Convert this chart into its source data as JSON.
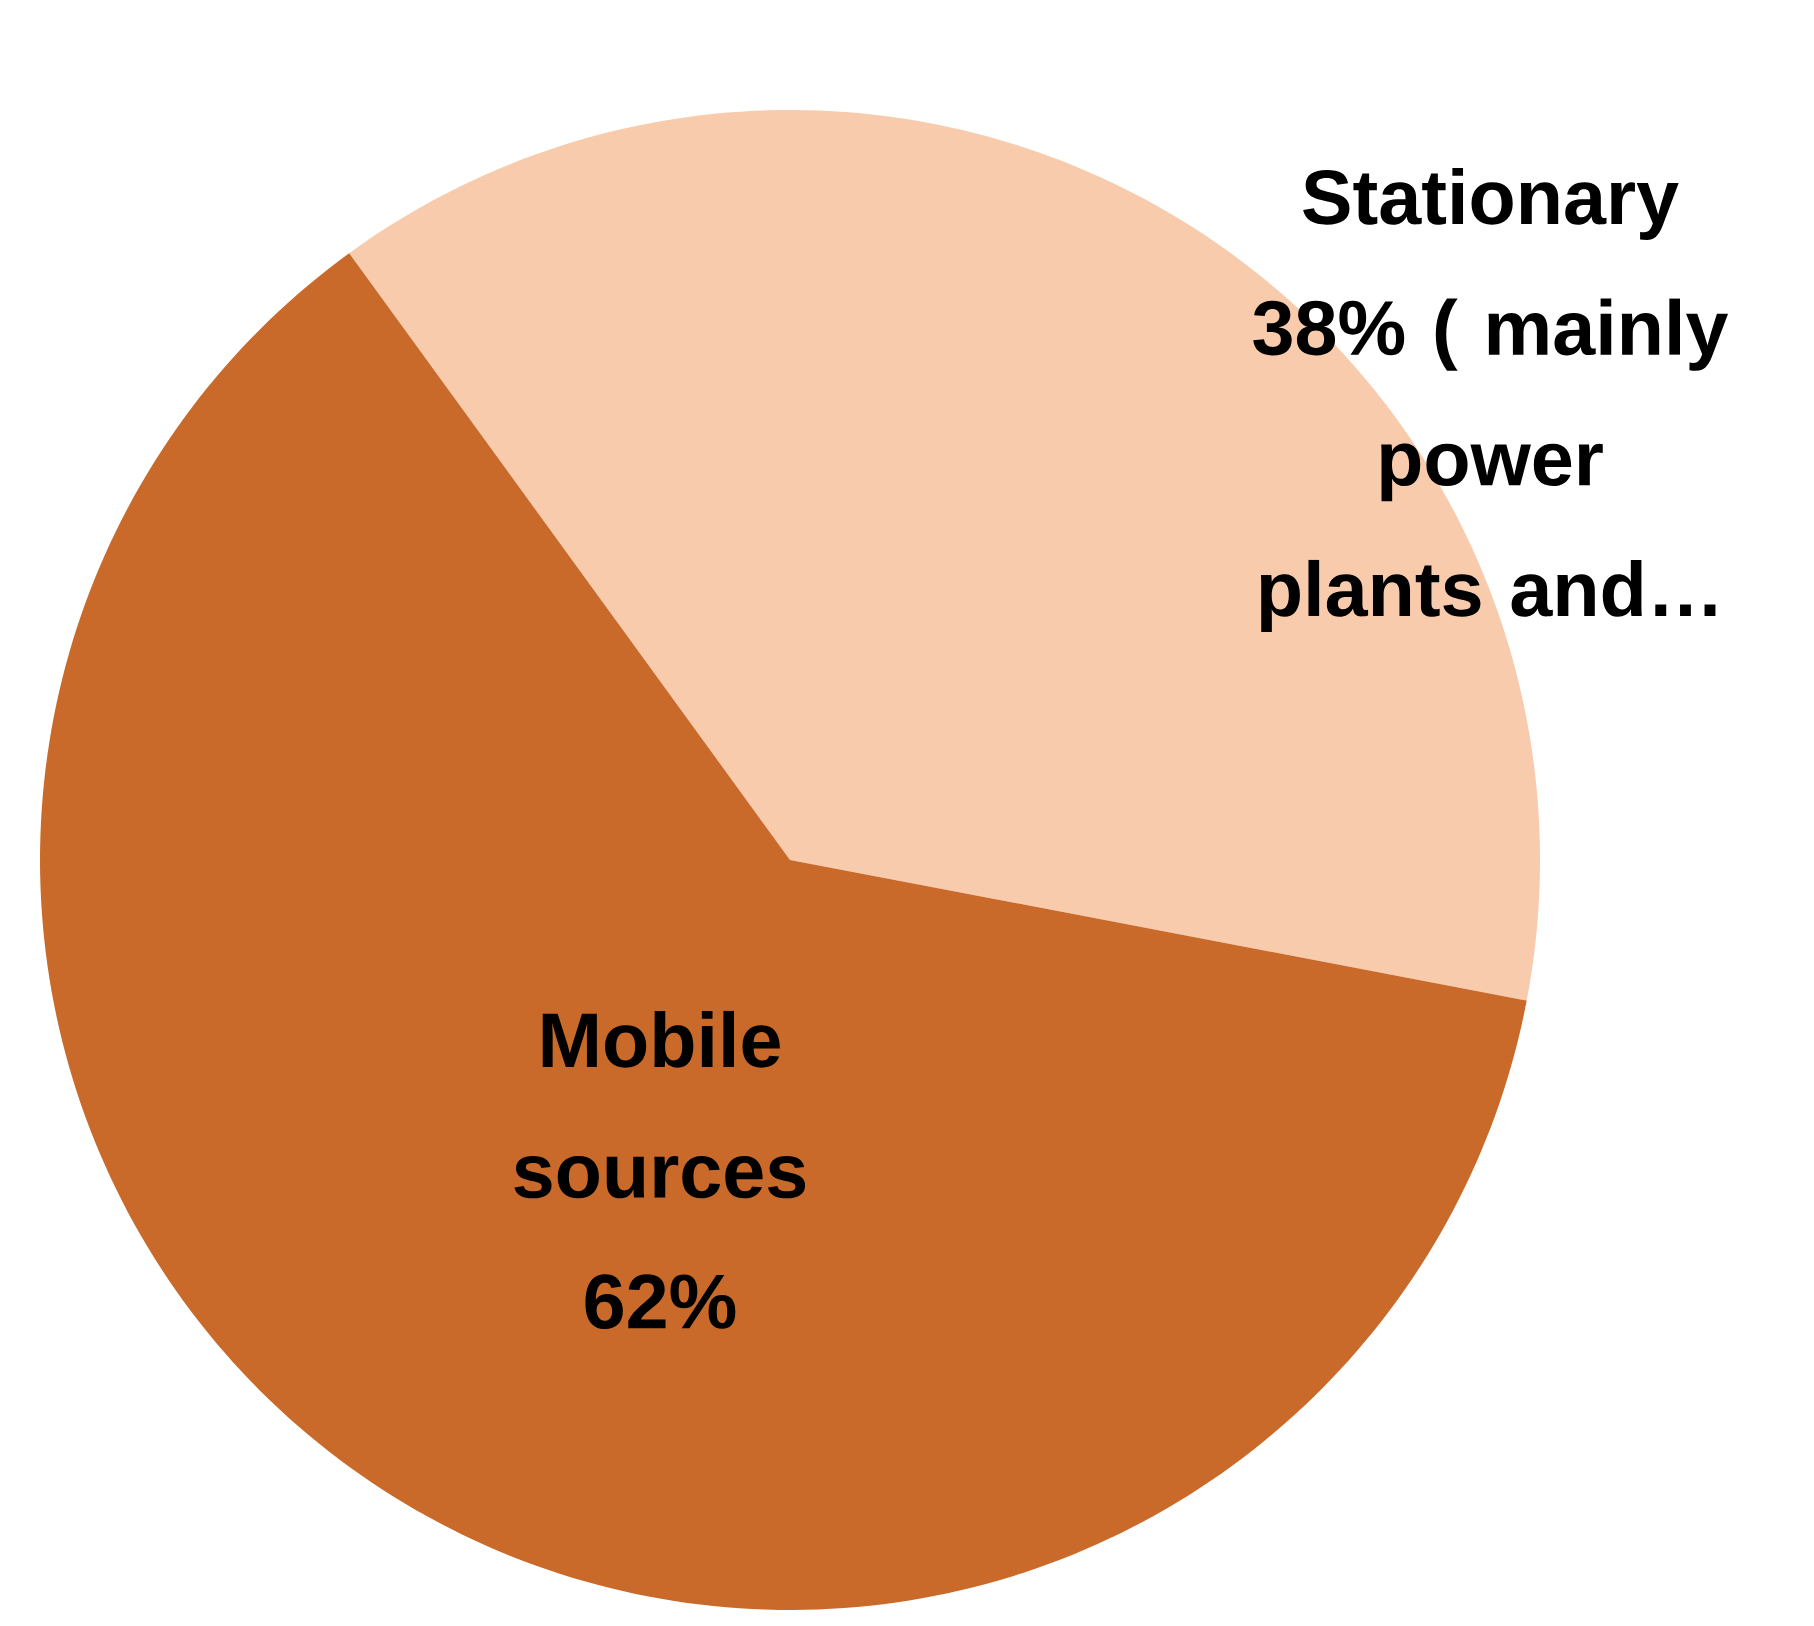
{
  "chart_data": {
    "type": "pie",
    "categories": [
      "Stationary",
      "Mobile sources"
    ],
    "values": [
      38,
      62
    ],
    "colors": [
      "#f8cbad",
      "#c96a2a"
    ],
    "value_labels": [
      "38% ( mainly power plants and…",
      "62%"
    ]
  }
}
